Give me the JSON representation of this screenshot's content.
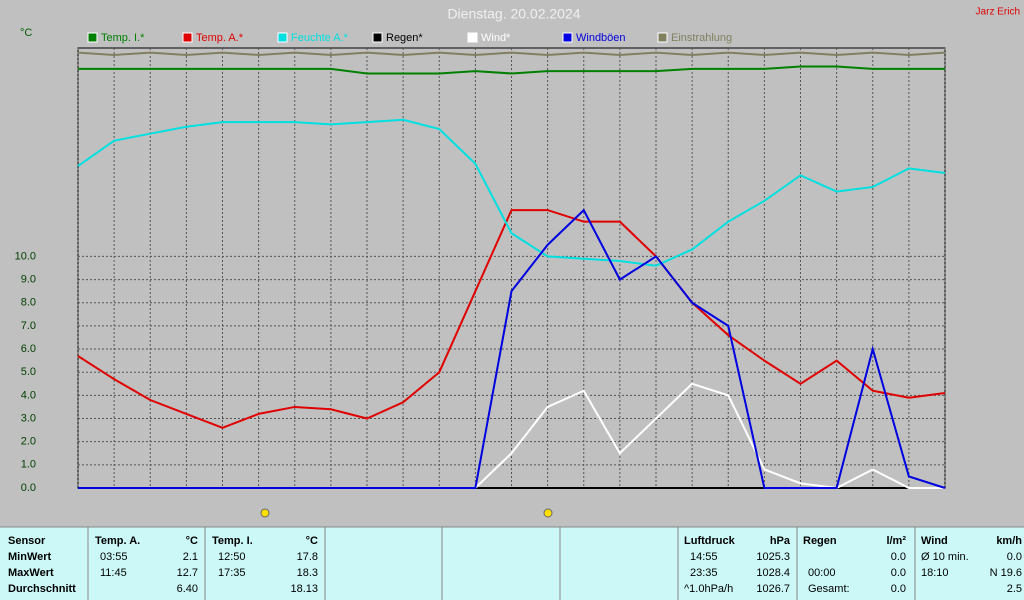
{
  "chart_data": {
    "type": "line",
    "title": "Dienstag. 20.02.2024",
    "author": "Jarz Erich",
    "y_label": "°C",
    "x": [
      0,
      1,
      2,
      3,
      4,
      5,
      6,
      7,
      8,
      9,
      10,
      11,
      12,
      13,
      14,
      15,
      16,
      17,
      18,
      19,
      20,
      21,
      22,
      23,
      24
    ],
    "xlim": [
      0,
      24
    ],
    "ylim": [
      0,
      19
    ],
    "yticks": [
      {
        "value": 0,
        "label": "0.0"
      },
      {
        "value": 1,
        "label": "1.0"
      },
      {
        "value": 2,
        "label": "2.0"
      },
      {
        "value": 3,
        "label": "3.0"
      },
      {
        "value": 4,
        "label": "4.0"
      },
      {
        "value": 5,
        "label": "5.0"
      },
      {
        "value": 6,
        "label": "6.0"
      },
      {
        "value": 7,
        "label": "7.0"
      },
      {
        "value": 8,
        "label": "8.0"
      },
      {
        "value": 9,
        "label": "9.0"
      },
      {
        "value": 10,
        "label": "10.0"
      }
    ],
    "grid": true,
    "series": [
      {
        "name": "Temp. I.*",
        "color": "#008000",
        "values": [
          18.1,
          18.1,
          18.1,
          18.1,
          18.1,
          18.1,
          18.1,
          18.1,
          17.9,
          17.9,
          17.9,
          18.0,
          17.9,
          18.0,
          18.0,
          18.0,
          18.0,
          18.1,
          18.1,
          18.1,
          18.2,
          18.2,
          18.1,
          18.1,
          18.1
        ]
      },
      {
        "name": "Temp. A.*",
        "color": "#e00000",
        "values": [
          5.7,
          4.7,
          3.8,
          3.2,
          2.6,
          3.2,
          3.5,
          3.4,
          3.0,
          3.7,
          5.0,
          8.5,
          12.0,
          12.0,
          11.5,
          11.5,
          10.0,
          8.0,
          6.6,
          5.5,
          4.5,
          5.5,
          4.2,
          3.9,
          4.1
        ]
      },
      {
        "name": "Feuchte A.*",
        "color": "#00e0e0",
        "values": [
          13.9,
          15.0,
          15.3,
          15.6,
          15.8,
          15.8,
          15.8,
          15.7,
          15.8,
          15.9,
          15.5,
          14.0,
          11.0,
          10.0,
          9.9,
          9.8,
          9.6,
          10.3,
          11.5,
          12.4,
          13.5,
          12.8,
          13.0,
          13.8,
          13.6
        ]
      },
      {
        "name": "Regen*",
        "color": "#000000",
        "values": [
          0,
          0,
          0,
          0,
          0,
          0,
          0,
          0,
          0,
          0,
          0,
          0,
          0,
          0,
          0,
          0,
          0,
          0,
          0,
          0,
          0,
          0,
          0,
          0,
          0
        ]
      },
      {
        "name": "Wind*",
        "color": "#ffffff",
        "values": [
          0,
          0,
          0,
          0,
          0,
          0,
          0,
          0,
          0,
          0,
          0,
          0,
          1.5,
          3.5,
          4.2,
          1.5,
          3.0,
          4.5,
          4.0,
          0.8,
          0.2,
          0,
          0.8,
          0,
          0
        ]
      },
      {
        "name": "Windböen",
        "color": "#0000e0",
        "values": [
          0,
          0,
          0,
          0,
          0,
          0,
          0,
          0,
          0,
          0,
          0,
          0,
          8.5,
          10.5,
          12.0,
          9.0,
          10.0,
          8.0,
          7.0,
          0,
          0,
          0,
          6.0,
          0.5,
          0
        ]
      },
      {
        "name": "Einstrahlung",
        "color": "#808060",
        "values": [
          18.8,
          18.7,
          18.8,
          18.7,
          18.8,
          18.7,
          18.8,
          18.7,
          18.8,
          18.7,
          18.8,
          18.7,
          18.8,
          18.7,
          18.8,
          18.7,
          18.8,
          18.7,
          18.8,
          18.7,
          18.8,
          18.7,
          18.8,
          18.7,
          18.8
        ]
      }
    ]
  },
  "table": {
    "header": [
      "Sensor",
      "Temp. A.",
      "°C",
      "Temp. I.",
      "°C",
      "Luftdruck",
      "hPa",
      "Regen",
      "l/m²",
      "Wind",
      "km/h"
    ],
    "rows": [
      [
        "MinWert",
        "03:55",
        "2.1",
        "12:50",
        "17.8",
        "14:55",
        "1025.3",
        null,
        "0.0",
        "Ø 10 min.",
        "0.0"
      ],
      [
        "MaxWert",
        "11:45",
        "12.7",
        "17:35",
        "18.3",
        "23:35",
        "1028.4",
        "00:00",
        "0.0",
        "18:10",
        "N 19.6"
      ],
      [
        "Durchschnitt",
        null,
        "6.40",
        null,
        "18.13",
        "^1.0hPa/h",
        "1026.7",
        "Gesamt:",
        "0.0",
        null,
        "2.5"
      ]
    ]
  }
}
